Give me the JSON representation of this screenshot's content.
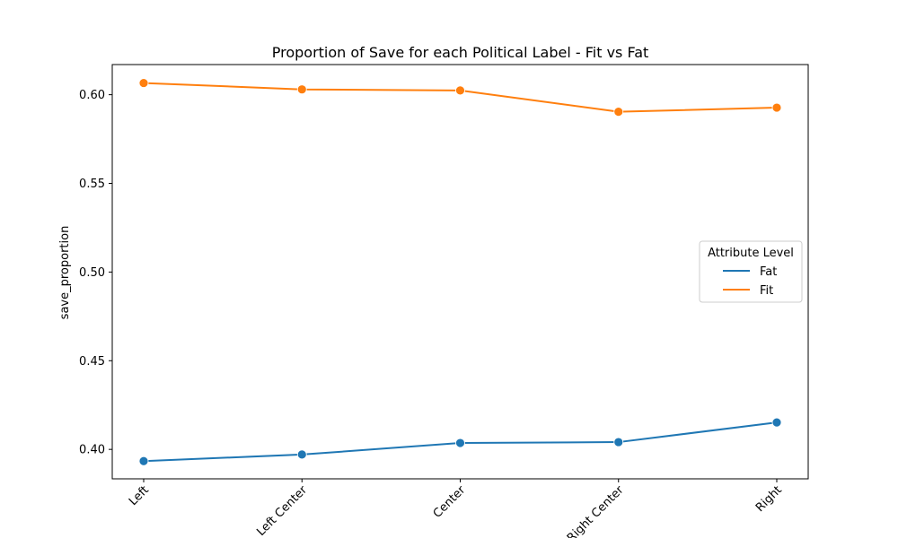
{
  "chart_data": {
    "type": "line",
    "title": "Proportion of Save for each Political Label - Fit vs Fat",
    "xlabel": "",
    "ylabel": "save_proportion",
    "categories": [
      "Left",
      "Left Center",
      "Center",
      "Right Center",
      "Right"
    ],
    "ylim": [
      0.3834,
      0.617
    ],
    "yticks": [
      0.4,
      0.45,
      0.5,
      0.55,
      0.6
    ],
    "ytick_labels": [
      "0.40",
      "0.45",
      "0.50",
      "0.55",
      "0.60"
    ],
    "grid": false,
    "legend": {
      "title": "Attribute Level",
      "placement": "center-right"
    },
    "series": [
      {
        "name": "Fat",
        "color": "#1f77b4",
        "values": [
          0.3934,
          0.3971,
          0.4036,
          0.4041,
          0.4152
        ]
      },
      {
        "name": "Fit",
        "color": "#ff7f0e",
        "values": [
          0.6066,
          0.603,
          0.6024,
          0.5904,
          0.5927
        ]
      }
    ]
  }
}
